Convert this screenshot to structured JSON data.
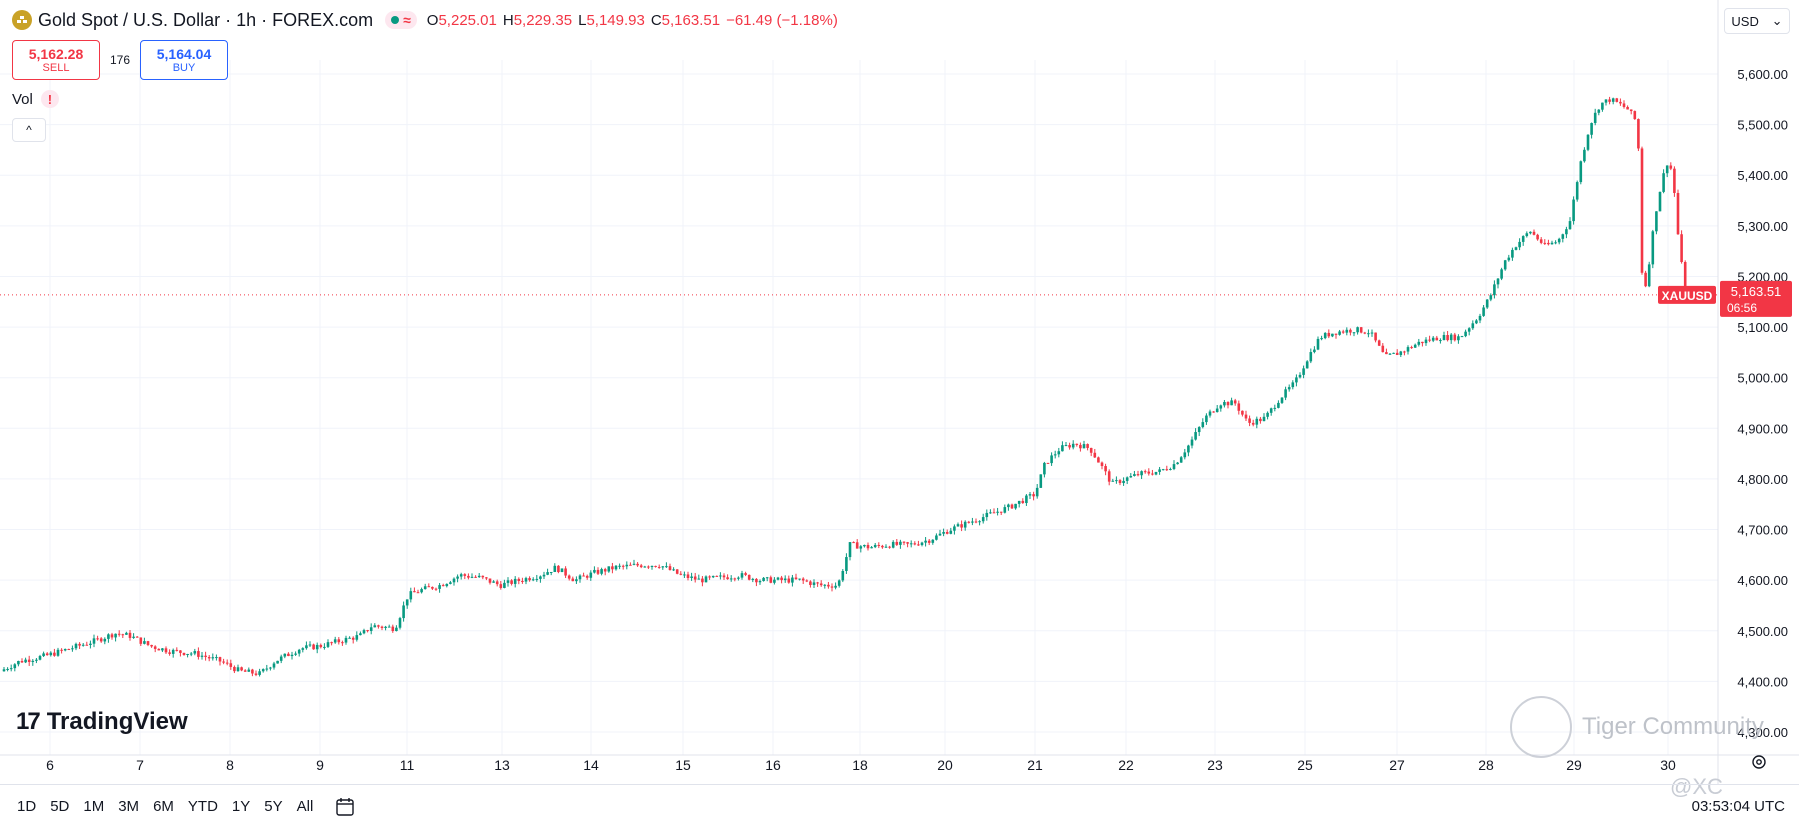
{
  "header": {
    "symbol_title": "Gold Spot / U.S. Dollar · 1h · FOREX.com",
    "status_wave": "≈",
    "ohlc": [
      {
        "k": "O",
        "v": "5,225.01"
      },
      {
        "k": "H",
        "v": "5,229.35"
      },
      {
        "k": "L",
        "v": "5,149.93"
      },
      {
        "k": "C",
        "v": "5,163.51"
      }
    ],
    "change": "−61.49 (−1.18%)"
  },
  "trade": {
    "sell_price": "5,162.28",
    "sell_label": "SELL",
    "spread": "176",
    "buy_price": "5,164.04",
    "buy_label": "BUY"
  },
  "indicator": {
    "vol_label": "Vol",
    "warning": "!",
    "collapse": "^"
  },
  "currency": {
    "label": "USD",
    "caret": "⌄"
  },
  "logo": {
    "mark": "17",
    "text": "TradingView"
  },
  "watermark": {
    "text": "Tiger Community",
    "user": "@XC"
  },
  "bottom": {
    "ranges": [
      "1D",
      "5D",
      "1M",
      "3M",
      "6M",
      "YTD",
      "1Y",
      "5Y",
      "All"
    ],
    "time": "03:53:04 UTC"
  },
  "price_tag": {
    "symbol": "XAUUSD",
    "price": "5,163.51",
    "countdown": "06:56"
  },
  "colors": {
    "up": "#089981",
    "down": "#f23645",
    "grid": "#f0f3fa",
    "accent": "#2962ff"
  },
  "chart_data": {
    "type": "candlestick",
    "ylim": [
      4270,
      5660
    ],
    "y_ticks": [
      "5,600.00",
      "5,500.00",
      "5,400.00",
      "5,300.00",
      "5,200.00",
      "5,100.00",
      "5,000.00",
      "4,900.00",
      "4,800.00",
      "4,700.00",
      "4,600.00",
      "4,500.00",
      "4,400.00",
      "4,300.00"
    ],
    "y_tick_values": [
      5600,
      5500,
      5400,
      5300,
      5200,
      5100,
      5000,
      4900,
      4800,
      4700,
      4600,
      4500,
      4400,
      4300
    ],
    "x_ticks": [
      "6",
      "7",
      "8",
      "9",
      "11",
      "13",
      "14",
      "15",
      "16",
      "18",
      "20",
      "21",
      "22",
      "23",
      "25",
      "27",
      "28",
      "29",
      "30"
    ],
    "last_price": 5163.51,
    "anchors": [
      [
        0,
        4420
      ],
      [
        20,
        4440
      ],
      [
        45,
        4450
      ],
      [
        70,
        4465
      ],
      [
        95,
        4480
      ],
      [
        115,
        4495
      ],
      [
        130,
        4490
      ],
      [
        150,
        4470
      ],
      [
        170,
        4460
      ],
      [
        195,
        4455
      ],
      [
        220,
        4440
      ],
      [
        240,
        4420
      ],
      [
        260,
        4415
      ],
      [
        275,
        4440
      ],
      [
        300,
        4465
      ],
      [
        320,
        4470
      ],
      [
        340,
        4480
      ],
      [
        360,
        4490
      ],
      [
        372,
        4510
      ],
      [
        395,
        4505
      ],
      [
        408,
        4570
      ],
      [
        420,
        4580
      ],
      [
        440,
        4590
      ],
      [
        460,
        4610
      ],
      [
        480,
        4605
      ],
      [
        500,
        4590
      ],
      [
        520,
        4600
      ],
      [
        540,
        4610
      ],
      [
        556,
        4625
      ],
      [
        575,
        4600
      ],
      [
        595,
        4615
      ],
      [
        615,
        4625
      ],
      [
        640,
        4630
      ],
      [
        660,
        4630
      ],
      [
        680,
        4610
      ],
      [
        700,
        4600
      ],
      [
        720,
        4605
      ],
      [
        740,
        4610
      ],
      [
        760,
        4600
      ],
      [
        780,
        4600
      ],
      [
        800,
        4600
      ],
      [
        820,
        4590
      ],
      [
        838,
        4590
      ],
      [
        850,
        4670
      ],
      [
        870,
        4665
      ],
      [
        890,
        4670
      ],
      [
        910,
        4670
      ],
      [
        930,
        4680
      ],
      [
        950,
        4700
      ],
      [
        970,
        4715
      ],
      [
        990,
        4730
      ],
      [
        1010,
        4745
      ],
      [
        1035,
        4770
      ],
      [
        1045,
        4830
      ],
      [
        1060,
        4860
      ],
      [
        1075,
        4870
      ],
      [
        1090,
        4860
      ],
      [
        1100,
        4830
      ],
      [
        1112,
        4790
      ],
      [
        1125,
        4800
      ],
      [
        1140,
        4810
      ],
      [
        1160,
        4815
      ],
      [
        1175,
        4830
      ],
      [
        1190,
        4870
      ],
      [
        1205,
        4920
      ],
      [
        1220,
        4950
      ],
      [
        1235,
        4950
      ],
      [
        1248,
        4910
      ],
      [
        1265,
        4920
      ],
      [
        1280,
        4960
      ],
      [
        1295,
        4990
      ],
      [
        1308,
        5040
      ],
      [
        1320,
        5080
      ],
      [
        1335,
        5090
      ],
      [
        1355,
        5095
      ],
      [
        1370,
        5090
      ],
      [
        1385,
        5040
      ],
      [
        1400,
        5050
      ],
      [
        1420,
        5070
      ],
      [
        1440,
        5080
      ],
      [
        1460,
        5080
      ],
      [
        1478,
        5120
      ],
      [
        1490,
        5160
      ],
      [
        1505,
        5230
      ],
      [
        1515,
        5260
      ],
      [
        1530,
        5290
      ],
      [
        1545,
        5260
      ],
      [
        1558,
        5270
      ],
      [
        1570,
        5310
      ],
      [
        1580,
        5420
      ],
      [
        1590,
        5500
      ],
      [
        1600,
        5540
      ],
      [
        1610,
        5550
      ],
      [
        1620,
        5540
      ],
      [
        1628,
        5530
      ],
      [
        1635,
        5510
      ],
      [
        1638,
        5480
      ],
      [
        1642,
        5210
      ],
      [
        1646,
        5180
      ],
      [
        1655,
        5320
      ],
      [
        1662,
        5390
      ],
      [
        1668,
        5430
      ],
      [
        1673,
        5400
      ],
      [
        1677,
        5300
      ],
      [
        1683,
        5200
      ],
      [
        1687,
        5163
      ]
    ]
  }
}
